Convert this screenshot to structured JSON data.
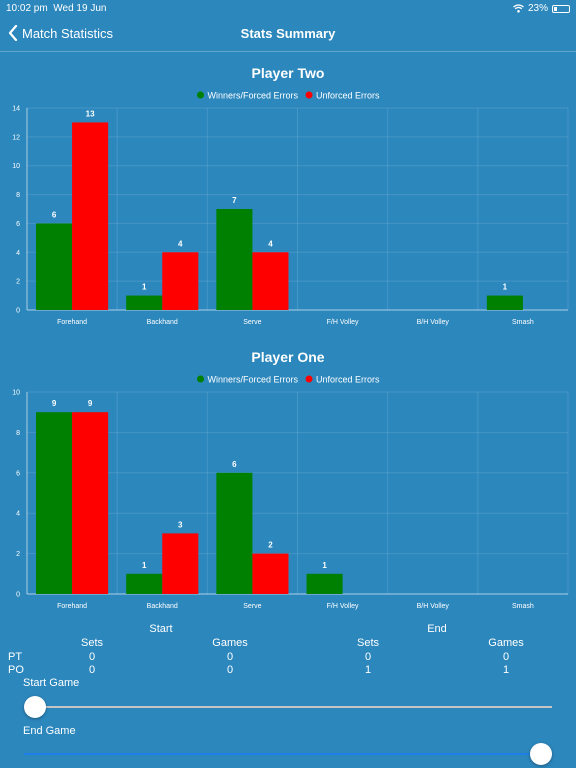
{
  "status_bar": {
    "time": "10:02 pm",
    "date": "Wed 19 Jun",
    "battery": "23%",
    "battery_level": 0.23,
    "wifi_icon": "wifi-icon"
  },
  "nav": {
    "back_label": "Match Statistics",
    "title": "Stats Summary",
    "back_icon": "chevron-left-icon"
  },
  "colors": {
    "background": "#2c87bd",
    "winners": "#008000",
    "unforced": "#ff0000",
    "text": "#ffffff"
  },
  "chart_data": [
    {
      "type": "bar",
      "title": "Player Two",
      "categories": [
        "Forehand",
        "Backhand",
        "Serve",
        "F/H Volley",
        "B/H Volley",
        "Smash"
      ],
      "series": [
        {
          "name": "Winners/Forced Errors",
          "values": [
            6,
            1,
            7,
            0,
            0,
            1
          ],
          "color": "#008000"
        },
        {
          "name": "Unforced Errors",
          "values": [
            13,
            4,
            4,
            0,
            0,
            0
          ],
          "color": "#ff0000"
        }
      ],
      "ylim": [
        0,
        14
      ],
      "yticks": [
        0,
        2,
        4,
        6,
        8,
        10,
        12,
        14
      ],
      "legend": "top-center",
      "grid": true
    },
    {
      "type": "bar",
      "title": "Player One",
      "categories": [
        "Forehand",
        "Backhand",
        "Serve",
        "F/H Volley",
        "B/H Volley",
        "Smash"
      ],
      "series": [
        {
          "name": "Winners/Forced Errors",
          "values": [
            9,
            1,
            6,
            1,
            0,
            0
          ],
          "color": "#008000"
        },
        {
          "name": "Unforced Errors",
          "values": [
            9,
            3,
            2,
            0,
            0,
            0
          ],
          "color": "#ff0000"
        }
      ],
      "ylim": [
        0,
        10
      ],
      "yticks": [
        0,
        2,
        4,
        6,
        8,
        10
      ],
      "legend": "top-center",
      "grid": true
    }
  ],
  "summary": {
    "start_label": "Start",
    "end_label": "End",
    "headers": [
      "Sets",
      "Games",
      "Sets",
      "Games"
    ],
    "rows": [
      {
        "label": "PT",
        "values": [
          "0",
          "0",
          "0",
          "0"
        ]
      },
      {
        "label": "PO",
        "values": [
          "0",
          "0",
          "1",
          "1"
        ]
      }
    ]
  },
  "sliders": [
    {
      "label": "Start Game",
      "value": 0.0
    },
    {
      "label": "End Game",
      "value": 1.0
    }
  ]
}
